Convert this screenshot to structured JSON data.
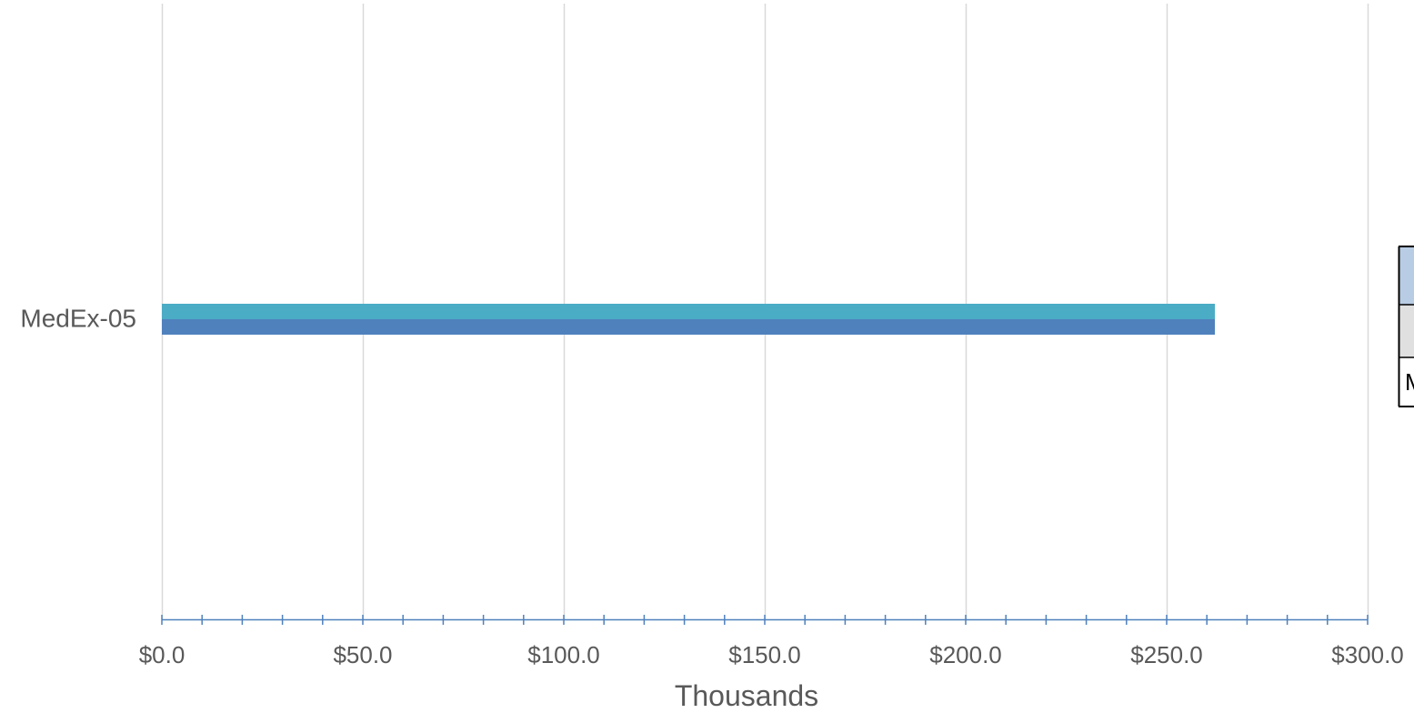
{
  "chart_data": {
    "type": "bar",
    "orientation": "horizontal",
    "categories": [
      "MedEx-05"
    ],
    "series": [
      {
        "values": [
          262
        ]
      },
      {
        "values": [
          262
        ]
      }
    ],
    "xlabel": "Thousands",
    "xlim": [
      0,
      300
    ],
    "x_major_ticks": [
      0,
      50,
      100,
      150,
      200,
      250,
      300
    ],
    "x_tick_labels": [
      "$0.0",
      "$50.0",
      "$100.0",
      "$150.0",
      "$200.0",
      "$250.0",
      "$300.0"
    ],
    "x_minor_step": 10,
    "grid": true,
    "colors": {
      "series": [
        "#4bacc6",
        "#4f81bd"
      ],
      "grid": "#d9d9d9",
      "axis": "#4f81bd",
      "text": "#595959"
    }
  },
  "data_table": {
    "partial_cell_text": "M",
    "colors": {
      "header_fill": "#b8cce4",
      "row_fill": "#e0e0e0",
      "border": "#000000"
    }
  }
}
